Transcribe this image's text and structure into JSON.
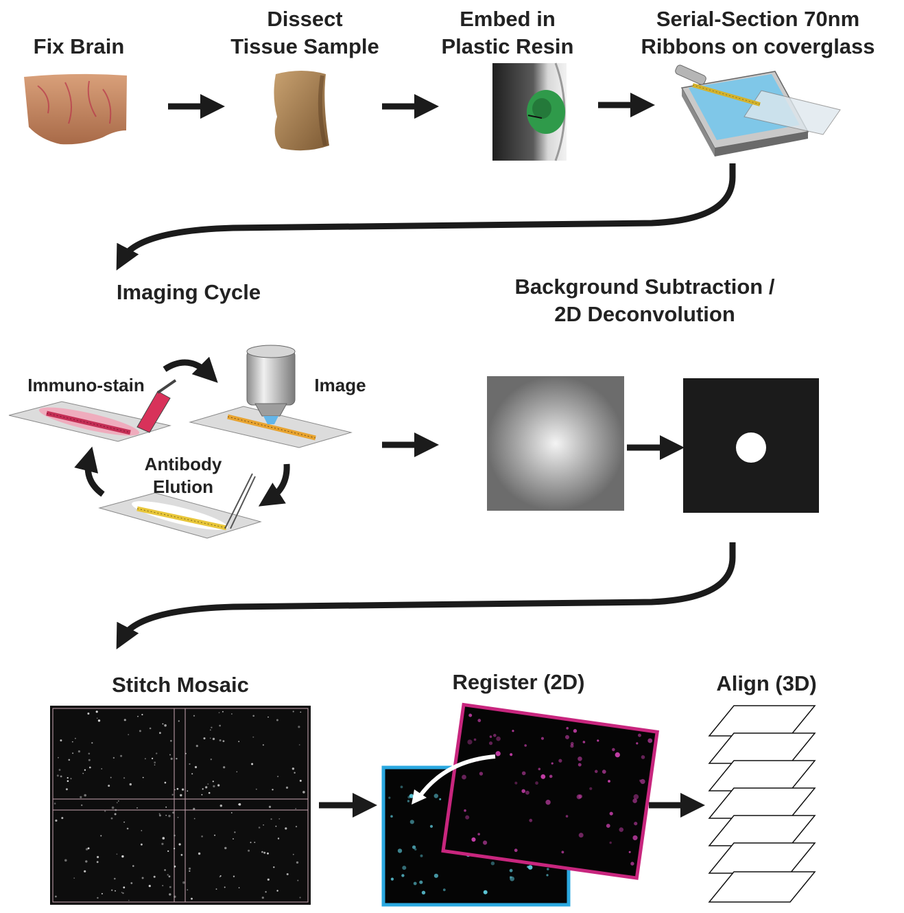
{
  "steps": {
    "fix_brain": "Fix Brain",
    "dissect_line1": "Dissect",
    "dissect_line2": "Tissue Sample",
    "embed_line1": "Embed in",
    "embed_line2": "Plastic Resin",
    "serial_line1": "Serial-Section 70nm",
    "serial_line2": "Ribbons on coverglass",
    "imaging_cycle": "Imaging Cycle",
    "immuno_stain": "Immuno-stain",
    "image": "Image",
    "antibody_line1": "Antibody",
    "antibody_line2": "Elution",
    "background_line1": "Background Subtraction /",
    "background_line2": "2D Deconvolution",
    "stitch_mosaic": "Stitch Mosaic",
    "register_2d": "Register (2D)",
    "align_3d": "Align (3D)"
  },
  "colors": {
    "arrow": "#1b1b1b",
    "stain_red": "#d8325a",
    "ribbon_yellow": "#e8c63a",
    "cyan_frame": "#2aa8e0",
    "magenta_frame": "#c8267e",
    "green_resin": "#2f9a4a"
  }
}
